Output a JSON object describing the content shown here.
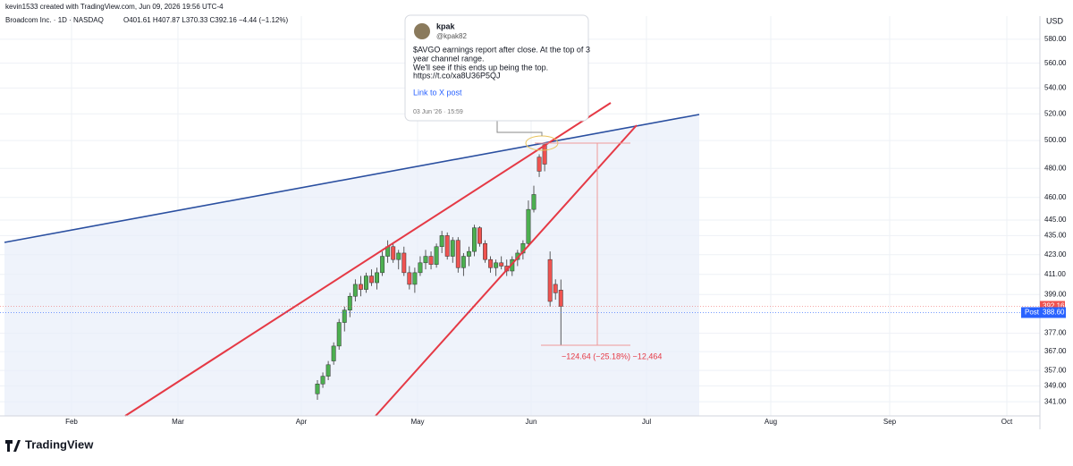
{
  "header": {
    "credit": "kevin1533 created with TradingView.com, Jun 09, 2026 19:56 UTC-4"
  },
  "chart_data": {
    "type": "candlestick",
    "symbol": "Broadcom Inc. · 1D · NASDAQ",
    "ohlc_text": "O401.61 H407.87 L370.33 C392.16 −4.44 (−1.12%)",
    "currency": "USD",
    "log_scale": true,
    "grid": true,
    "up_color": "#4caf50",
    "down_color": "#ef5350",
    "ylim": [
      334,
      600
    ],
    "yticks": [
      {
        "value": 580,
        "label": "580.00"
      },
      {
        "value": 560,
        "label": "560.00"
      },
      {
        "value": 540,
        "label": "540.00"
      },
      {
        "value": 520,
        "label": "520.00"
      },
      {
        "value": 500,
        "label": "500.00"
      },
      {
        "value": 480,
        "label": "480.00"
      },
      {
        "value": 460,
        "label": "460.00"
      },
      {
        "value": 445,
        "label": "445.00"
      },
      {
        "value": 435,
        "label": "435.00"
      },
      {
        "value": 423,
        "label": "423.00"
      },
      {
        "value": 411,
        "label": "411.00"
      },
      {
        "value": 399,
        "label": "399.00"
      },
      {
        "value": 377,
        "label": "377.00"
      },
      {
        "value": 367,
        "label": "367.00"
      },
      {
        "value": 357,
        "label": "357.00"
      },
      {
        "value": 349,
        "label": "349.00"
      },
      {
        "value": 341,
        "label": "341.00"
      }
    ],
    "xticks": [
      "Feb",
      "Mar",
      "Apr",
      "May",
      "Jun",
      "Jul",
      "Aug",
      "Sep",
      "Oct"
    ],
    "last_price": {
      "value": 392.16,
      "label": "392.16"
    },
    "post_price": {
      "tag": "Post",
      "value": 388.6,
      "label": "388.60"
    },
    "measure_label": "−124.64 (−25.18%) −12,464",
    "ohlc": [
      [
        345,
        352,
        342,
        350
      ],
      [
        350,
        356,
        348,
        354
      ],
      [
        354,
        362,
        352,
        360
      ],
      [
        362,
        372,
        360,
        370
      ],
      [
        370,
        385,
        368,
        383
      ],
      [
        383,
        392,
        378,
        390
      ],
      [
        390,
        400,
        386,
        398
      ],
      [
        398,
        408,
        395,
        405
      ],
      [
        405,
        410,
        398,
        402
      ],
      [
        402,
        412,
        400,
        410
      ],
      [
        410,
        414,
        404,
        406
      ],
      [
        406,
        415,
        402,
        412
      ],
      [
        412,
        425,
        410,
        422
      ],
      [
        422,
        432,
        418,
        428
      ],
      [
        428,
        430,
        418,
        420
      ],
      [
        420,
        426,
        414,
        424
      ],
      [
        424,
        428,
        410,
        412
      ],
      [
        412,
        416,
        402,
        405
      ],
      [
        405,
        415,
        400,
        412
      ],
      [
        412,
        422,
        410,
        418
      ],
      [
        418,
        426,
        414,
        422
      ],
      [
        422,
        425,
        414,
        417
      ],
      [
        417,
        430,
        415,
        428
      ],
      [
        428,
        438,
        424,
        435
      ],
      [
        435,
        437,
        420,
        422
      ],
      [
        422,
        434,
        418,
        432
      ],
      [
        432,
        434,
        412,
        415
      ],
      [
        415,
        424,
        410,
        422
      ],
      [
        422,
        428,
        416,
        425
      ],
      [
        425,
        442,
        422,
        440
      ],
      [
        440,
        441,
        428,
        430
      ],
      [
        430,
        432,
        418,
        420
      ],
      [
        420,
        422,
        412,
        415
      ],
      [
        415,
        420,
        410,
        418
      ],
      [
        418,
        422,
        414,
        416
      ],
      [
        416,
        420,
        410,
        413
      ],
      [
        413,
        422,
        410,
        420
      ],
      [
        420,
        426,
        416,
        424
      ],
      [
        424,
        432,
        420,
        430
      ],
      [
        430,
        458,
        428,
        452
      ],
      [
        452,
        468,
        450,
        462
      ],
      [
        488,
        490,
        474,
        478
      ],
      [
        497,
        498,
        478,
        483
      ],
      [
        420,
        425,
        392,
        395
      ],
      [
        405,
        408,
        396,
        400
      ],
      [
        401.61,
        407.87,
        370.33,
        392.16
      ]
    ]
  },
  "post": {
    "name": "kpak",
    "handle": "@kpak82",
    "lines": [
      "$AVGO earnings report after close. At the top of 3",
      "year channel range.",
      "We'll see if this ends up being the top.",
      "https://t.co/xa8U36P5QJ"
    ],
    "link": "Link to X post",
    "date": "03 Jun '26 · 15:59"
  },
  "footer": {
    "brand": "TradingView"
  }
}
